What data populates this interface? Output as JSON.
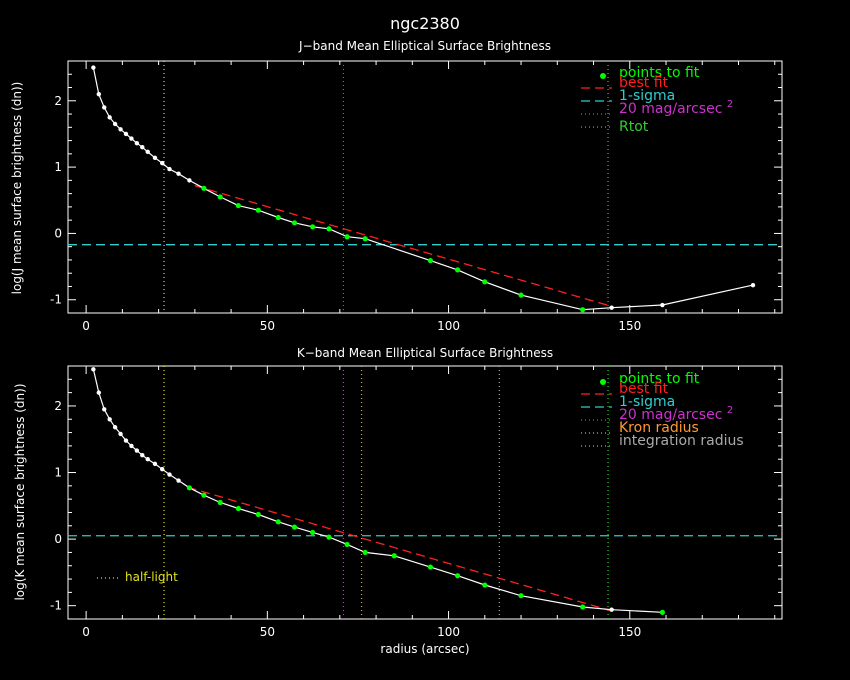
{
  "figure_title": "ngc2380",
  "colors": {
    "points": "#00ff00",
    "best_fit": "#ff2020",
    "sigma": "#33cccc",
    "mag20": "#cc33cc",
    "rtot": "#33cc33",
    "kron": "#ff9933",
    "integration": "#aaaaaa",
    "half_light": "#e0e020",
    "profile": "#ffffff"
  },
  "chart_data": [
    {
      "type": "line",
      "title": "J−band Mean Elliptical Surface Brightness",
      "ylabel": "log(J mean surface brightness (dn))",
      "xlabel": "",
      "xlim": [
        -5,
        192
      ],
      "ylim": [
        -1.2,
        2.6
      ],
      "x_ticks": [
        0,
        50,
        100,
        150
      ],
      "y_ticks": [
        -1,
        0,
        1,
        2
      ],
      "grid": false,
      "legend_position": "top-right",
      "legend": {
        "points": "points to fit",
        "fit": "best fit",
        "sigma": "1-sigma",
        "mag_text": "20 mag/arcsec",
        "mag_sup": "2",
        "r1": "Rtot"
      },
      "profile": {
        "x": [
          2.0,
          3.5,
          5.0,
          6.5,
          8.0,
          9.5,
          11.0,
          12.5,
          14.0,
          15.5,
          17.0,
          19.0,
          21.0,
          23.0,
          25.5,
          28.5,
          32.5,
          37.0,
          42.0,
          47.5,
          53.0,
          57.5,
          62.5,
          67.0,
          72.0,
          77.0,
          95.0,
          102.5,
          110.0,
          120.0,
          137.0,
          145.0,
          159.0,
          184.0
        ],
        "y": [
          2.5,
          2.1,
          1.9,
          1.75,
          1.65,
          1.57,
          1.5,
          1.43,
          1.36,
          1.3,
          1.23,
          1.14,
          1.06,
          0.97,
          0.9,
          0.8,
          0.68,
          0.55,
          0.42,
          0.35,
          0.24,
          0.16,
          0.1,
          0.07,
          -0.05,
          -0.08,
          -0.41,
          -0.55,
          -0.73,
          -0.93,
          -1.15,
          -1.12,
          -1.08,
          -0.78
        ]
      },
      "fit_points": {
        "x": [
          32.5,
          37.0,
          42.0,
          47.5,
          53.0,
          57.5,
          62.5,
          67.0,
          72.0,
          77.0,
          95.0,
          102.5,
          110.0,
          120.0,
          137.0
        ],
        "y": [
          0.68,
          0.55,
          0.42,
          0.35,
          0.24,
          0.16,
          0.1,
          0.07,
          -0.05,
          -0.08,
          -0.41,
          -0.55,
          -0.73,
          -0.93,
          -1.15
        ]
      },
      "best_fit": {
        "x": [
          30,
          145
        ],
        "y": [
          0.72,
          -1.1
        ]
      },
      "sigma_level": -0.17,
      "vlines": [
        {
          "key": "half_light",
          "x": 21.5
        },
        {
          "key": "mag20",
          "x": 71.0
        },
        {
          "key": "rtot",
          "x": 144.0
        }
      ]
    },
    {
      "type": "line",
      "title": "K−band Mean Elliptical Surface Brightness",
      "ylabel": "log(K mean surface brightness (dn))",
      "xlabel": "radius (arcsec)",
      "xlim": [
        -5,
        192
      ],
      "ylim": [
        -1.2,
        2.6
      ],
      "x_ticks": [
        0,
        50,
        100,
        150
      ],
      "y_ticks": [
        -1,
        0,
        1,
        2
      ],
      "grid": false,
      "legend_position": "top-right",
      "legend": {
        "points": "points to fit",
        "fit": "best fit",
        "sigma": "1-sigma",
        "mag_text": "20 mag/arcsec",
        "mag_sup": "2",
        "r1": "Kron radius",
        "r2": "integration radius"
      },
      "half_light_label": "half-light",
      "profile": {
        "x": [
          2.0,
          3.5,
          5.0,
          6.5,
          8.0,
          9.5,
          11.0,
          12.5,
          14.0,
          15.5,
          17.0,
          19.0,
          21.0,
          23.0,
          25.5,
          28.5,
          32.5,
          37.0,
          42.0,
          47.5,
          53.0,
          57.5,
          62.5,
          67.0,
          72.0,
          77.0,
          85.0,
          95.0,
          102.5,
          110.0,
          120.0,
          137.0,
          145.0,
          159.0
        ],
        "y": [
          2.55,
          2.2,
          1.95,
          1.8,
          1.68,
          1.58,
          1.48,
          1.4,
          1.33,
          1.26,
          1.2,
          1.13,
          1.05,
          0.97,
          0.88,
          0.77,
          0.66,
          0.55,
          0.46,
          0.37,
          0.26,
          0.18,
          0.1,
          0.03,
          -0.08,
          -0.2,
          -0.25,
          -0.42,
          -0.55,
          -0.69,
          -0.85,
          -1.02,
          -1.06,
          -1.1
        ]
      },
      "fit_points": {
        "x": [
          28.5,
          32.5,
          37.0,
          42.0,
          47.5,
          53.0,
          57.5,
          62.5,
          67.0,
          72.0,
          77.0,
          85.0,
          95.0,
          102.5,
          110.0,
          120.0,
          137.0,
          159.0
        ],
        "y": [
          0.77,
          0.66,
          0.55,
          0.46,
          0.37,
          0.26,
          0.18,
          0.1,
          0.03,
          -0.08,
          -0.2,
          -0.25,
          -0.42,
          -0.55,
          -0.69,
          -0.85,
          -1.02,
          -1.1
        ]
      },
      "best_fit": {
        "x": [
          28,
          145
        ],
        "y": [
          0.78,
          -1.08
        ]
      },
      "sigma_level": 0.05,
      "vlines": [
        {
          "key": "half_light",
          "x": 21.5
        },
        {
          "key": "mag20",
          "x": 71.0
        },
        {
          "key": "kron",
          "x": 76.0
        },
        {
          "key": "integration",
          "x": 114.0
        },
        {
          "key": "rtot",
          "x": 144.0
        }
      ]
    }
  ]
}
